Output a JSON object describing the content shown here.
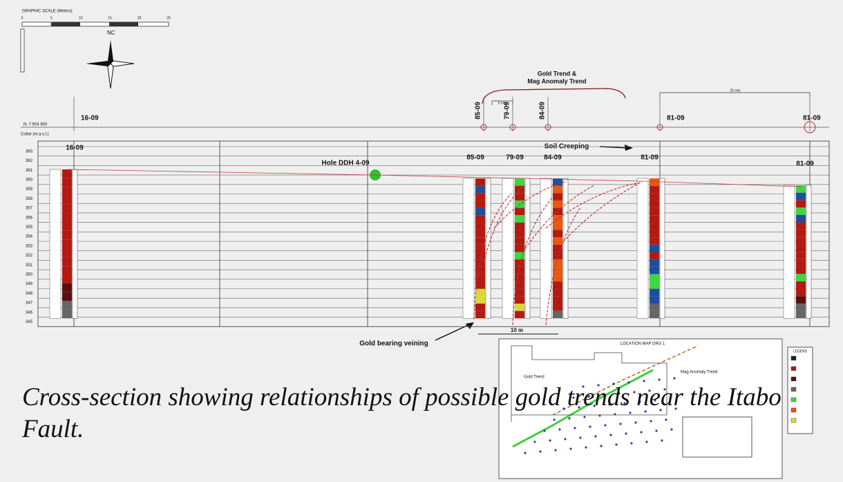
{
  "scale": {
    "title": "GRAPHIC SCALE (Meters)",
    "ticks": [
      "0",
      "5",
      "10",
      "15",
      "20",
      "25"
    ]
  },
  "compass": "NC",
  "northing": "N: 7 504 900",
  "collar_label": "Collar (m.a.s.l.)",
  "elevations": [
    "363",
    "362",
    "361",
    "360",
    "359",
    "358",
    "357",
    "356",
    "355",
    "354",
    "353",
    "352",
    "351",
    "350",
    "349",
    "348",
    "347",
    "346",
    "345"
  ],
  "holes_top": [
    "16-09",
    "85-09",
    "79-09",
    "84-09",
    "81-09",
    "81-09"
  ],
  "trend_label": [
    "Gold Trend &",
    "Mag Anomaly Trend"
  ],
  "spacing_labels": [
    "5 mts",
    "25 mts"
  ],
  "section_labels": [
    "16-09",
    "85-09",
    "79-09",
    "84-09",
    "81-09",
    "81-09"
  ],
  "annotations": {
    "ddh": "Hole DDH 4-09",
    "soil": "Soil Creeping",
    "veining": "Gold bearing veining",
    "width": "10 m"
  },
  "location_map": {
    "title": "LOCATION MAP DRG 1",
    "gold_trend": "Gold Trend",
    "mag_trend": "Mag Anomaly Trend",
    "legend": "LEGEND"
  },
  "caption": "Cross-section showing relationships of possible gold trends near the Itabo Fault."
}
